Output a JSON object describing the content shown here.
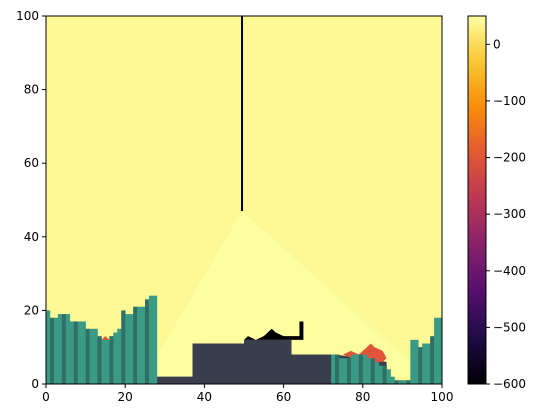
{
  "chart_data": {
    "type": "heatmap",
    "title": "",
    "xlabel": "",
    "ylabel": "",
    "xlim": [
      0,
      100
    ],
    "ylim": [
      0,
      100
    ],
    "x_ticks": [
      0,
      20,
      40,
      60,
      80,
      100
    ],
    "y_ticks": [
      0,
      20,
      40,
      60,
      80,
      100
    ],
    "background_value": 40,
    "colormap": "inferno",
    "colorbar": {
      "vmin": -600,
      "vmax": 50,
      "ticks": [
        0,
        -100,
        -200,
        -300,
        -400,
        -500,
        -600
      ],
      "tick_labels": [
        "0",
        "−100",
        "−200",
        "−300",
        "−400",
        "−500",
        "−600"
      ]
    },
    "light_cone": {
      "apex": [
        49.5,
        47
      ],
      "left_edge_x": 25,
      "right_edge_x": 97,
      "base_y": 2,
      "value": 48
    },
    "beam": {
      "x": 49.5,
      "y_range": [
        47,
        100
      ],
      "value": -600
    },
    "terrain_teal": {
      "color": "#3b9a86",
      "step_x": 1,
      "heights_left": [
        20,
        18,
        18,
        19,
        19,
        19,
        17,
        17,
        17,
        17,
        15,
        15,
        15,
        13,
        12,
        12,
        13,
        14,
        15,
        20,
        19,
        19,
        21,
        21,
        21,
        23,
        24,
        24
      ],
      "heights_right": [
        8,
        8,
        7,
        7,
        7,
        8,
        8,
        8,
        8,
        7,
        7,
        6,
        5,
        5,
        4,
        2,
        1,
        1,
        1,
        1,
        12,
        12,
        10,
        11,
        11,
        13,
        18,
        18
      ]
    },
    "terrain_dark": {
      "color": "#3a3e4c",
      "profile": [
        [
          26,
          2
        ],
        [
          37,
          2
        ],
        [
          37,
          11
        ],
        [
          50,
          11
        ],
        [
          50,
          12
        ],
        [
          62,
          12
        ],
        [
          62,
          8
        ],
        [
          73,
          8
        ],
        [
          73,
          8
        ],
        [
          86,
          6
        ],
        [
          86,
          1
        ],
        [
          92,
          1
        ]
      ]
    },
    "black_patches": [
      [
        [
          50,
          12
        ],
        [
          51,
          13
        ],
        [
          53,
          12
        ],
        [
          55,
          13
        ],
        [
          56,
          14
        ],
        [
          57,
          15
        ],
        [
          58,
          14
        ],
        [
          60,
          13
        ],
        [
          62,
          13
        ],
        [
          64,
          13
        ],
        [
          64,
          17
        ],
        [
          65,
          17
        ],
        [
          65,
          13
        ],
        [
          65,
          12
        ],
        [
          50,
          12
        ]
      ]
    ],
    "red_patches": [
      [
        [
          14,
          12
        ],
        [
          15,
          13
        ],
        [
          16,
          12
        ],
        [
          16,
          11
        ],
        [
          14,
          12
        ]
      ],
      [
        [
          75,
          8
        ],
        [
          77,
          9
        ],
        [
          79,
          8
        ],
        [
          81,
          10
        ],
        [
          82,
          11
        ],
        [
          83,
          10
        ],
        [
          85,
          9
        ],
        [
          86,
          7
        ],
        [
          85,
          6
        ],
        [
          80,
          6
        ],
        [
          77,
          7
        ],
        [
          75,
          8
        ]
      ]
    ]
  }
}
